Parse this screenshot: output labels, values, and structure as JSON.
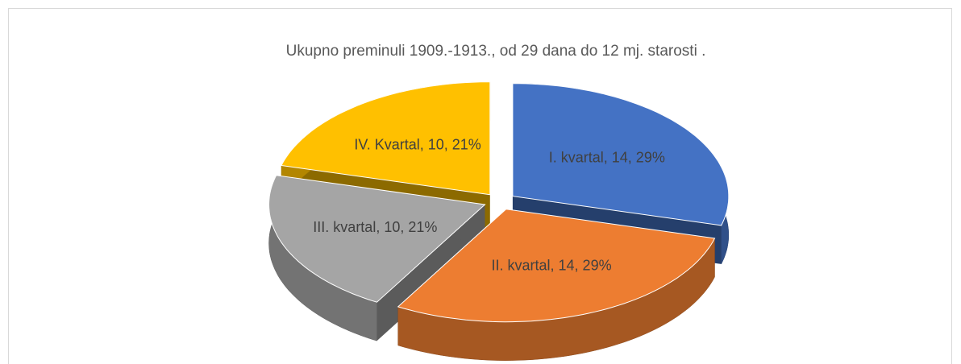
{
  "chart_data": {
    "type": "pie3d",
    "title": "Ukupno preminuli 1909.-1913., od 29 dana do 12 mj. starosti .",
    "categories": [
      "I. kvartal",
      "II. kvartal",
      "III. kvartal",
      "IV. Kvartal"
    ],
    "values": [
      14,
      14,
      10,
      10
    ],
    "value_labels": [
      "I. kvartal, 14, 29%",
      "II. kvartal, 14, 29%",
      "III. kvartal, 10, 21%",
      "IV. Kvartal, 10, 21%"
    ],
    "colors": [
      "#4472c4",
      "#ed7d31",
      "#a5a5a5",
      "#ffc000"
    ]
  }
}
